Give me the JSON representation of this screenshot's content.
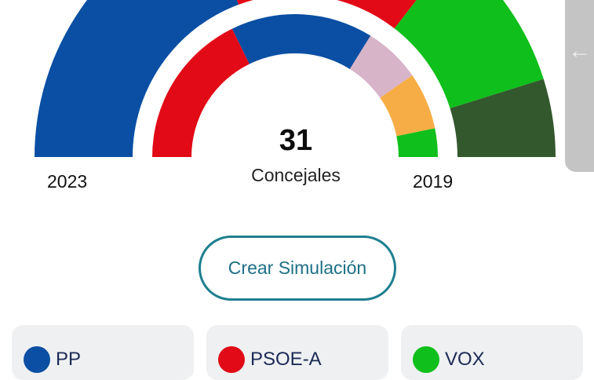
{
  "hemicycle": {
    "seats_total": "31",
    "seats_label": "Concejales",
    "left_year": "2023",
    "right_year": "2019"
  },
  "chart_data": {
    "type": "pie",
    "subtype": "parliament-hemicycle",
    "rings": [
      {
        "name": "2023",
        "segments": [
          {
            "party": "PSOE-A",
            "seats": 11,
            "color": "#e20a16"
          },
          {
            "party": "PP",
            "seats": 10,
            "color": "#0a4fa3"
          },
          {
            "party": "",
            "seats": 4,
            "color": "#d8b4c8"
          },
          {
            "party": "",
            "seats": 4,
            "color": "#f7ad45"
          },
          {
            "party": "VOX",
            "seats": 2,
            "color": "#0fbf1b"
          }
        ]
      },
      {
        "name": "2019",
        "segments": [
          {
            "party": "PP",
            "seats": 12,
            "color": "#0a4fa3"
          },
          {
            "party": "PSOE-A",
            "seats": 10,
            "color": "#e20a16"
          },
          {
            "party": "VOX",
            "seats": 6,
            "color": "#0fbf1b"
          },
          {
            "party": "",
            "seats": 3,
            "color": "#33582d"
          }
        ]
      }
    ]
  },
  "actions": {
    "create_simulation_label": "Crear Simulación"
  },
  "parties": [
    {
      "name": "PP",
      "color": "#0a4fa3"
    },
    {
      "name": "PSOE-A",
      "color": "#e20a16"
    },
    {
      "name": "VOX",
      "color": "#0fbf1b"
    }
  ],
  "side_handle": {
    "icon": "arrow-left-icon",
    "glyph": "←"
  }
}
